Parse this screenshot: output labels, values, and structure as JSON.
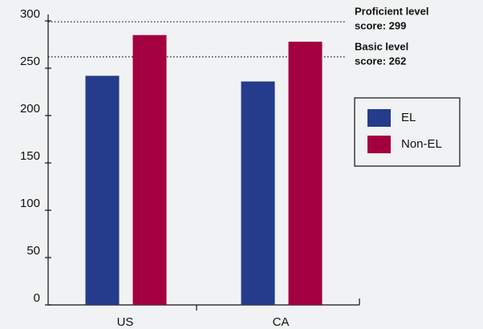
{
  "chart_data": {
    "type": "bar",
    "categories": [
      "US",
      "CA"
    ],
    "series": [
      {
        "name": "EL",
        "color": "#253b8c",
        "values": [
          242,
          236
        ]
      },
      {
        "name": "Non-EL",
        "color": "#a3003f",
        "values": [
          285,
          278
        ]
      }
    ],
    "ylim": [
      0,
      300
    ],
    "yticks": [
      0,
      50,
      100,
      150,
      200,
      250,
      300
    ],
    "reference_lines": [
      {
        "value": 299,
        "label": [
          "Proficient level",
          "score: 299"
        ]
      },
      {
        "value": 262,
        "label": [
          "Basic level",
          "score: 262"
        ]
      }
    ],
    "legend": "right"
  }
}
